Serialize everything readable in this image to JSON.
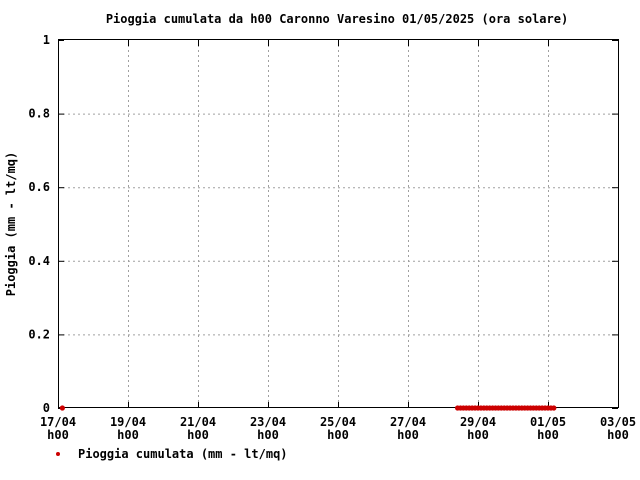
{
  "chart_data": {
    "type": "scatter",
    "title": "Pioggia cumulata da h00 Caronno Varesino 01/05/2025 (ora solare)",
    "ylabel": "Pioggia (mm - lt/mq)",
    "xlabel": "",
    "x_ticks": [
      {
        "date": "17/04",
        "hour": "h00"
      },
      {
        "date": "19/04",
        "hour": "h00"
      },
      {
        "date": "21/04",
        "hour": "h00"
      },
      {
        "date": "23/04",
        "hour": "h00"
      },
      {
        "date": "25/04",
        "hour": "h00"
      },
      {
        "date": "27/04",
        "hour": "h00"
      },
      {
        "date": "29/04",
        "hour": "h00"
      },
      {
        "date": "01/05",
        "hour": "h00"
      },
      {
        "date": "03/05",
        "hour": "h00"
      }
    ],
    "y_ticks": [
      "0",
      "0.2",
      "0.4",
      "0.6",
      "0.8",
      "1"
    ],
    "xlim": [
      "2025-04-17 00:00",
      "2025-05-03 00:00"
    ],
    "ylim": [
      0,
      1
    ],
    "grid": true,
    "legend_position": "bottom-left",
    "series": [
      {
        "name": "Pioggia cumulata (mm - lt/mq)",
        "color": "#cc0000",
        "x": [
          "2025-04-17 03:00",
          "2025-04-28 10:00",
          "2025-04-28 12:00",
          "2025-04-28 14:00",
          "2025-04-28 16:00",
          "2025-04-28 18:00",
          "2025-04-28 20:00",
          "2025-04-28 22:00",
          "2025-04-29 00:00",
          "2025-04-29 02:00",
          "2025-04-29 04:00",
          "2025-04-29 06:00",
          "2025-04-29 08:00",
          "2025-04-29 10:00",
          "2025-04-29 12:00",
          "2025-04-29 14:00",
          "2025-04-29 16:00",
          "2025-04-29 18:00",
          "2025-04-29 20:00",
          "2025-04-29 22:00",
          "2025-04-30 00:00",
          "2025-04-30 02:00",
          "2025-04-30 04:00",
          "2025-04-30 06:00",
          "2025-04-30 08:00",
          "2025-04-30 10:00",
          "2025-04-30 12:00",
          "2025-04-30 14:00",
          "2025-04-30 16:00",
          "2025-04-30 18:00",
          "2025-04-30 20:00",
          "2025-04-30 22:00",
          "2025-05-01 00:00",
          "2025-05-01 02:00",
          "2025-05-01 04:00"
        ],
        "y": [
          0,
          0,
          0,
          0,
          0,
          0,
          0,
          0,
          0,
          0,
          0,
          0,
          0,
          0,
          0,
          0,
          0,
          0,
          0,
          0,
          0,
          0,
          0,
          0,
          0,
          0,
          0,
          0,
          0,
          0,
          0,
          0,
          0,
          0,
          0
        ]
      }
    ]
  }
}
